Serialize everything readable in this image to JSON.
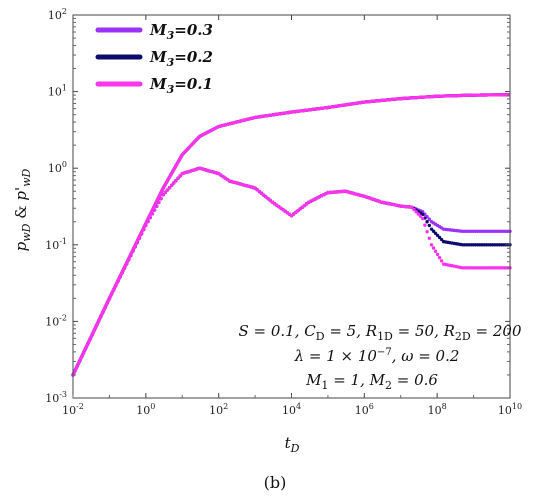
{
  "chart_data": {
    "type": "line",
    "xscale": "log",
    "yscale": "log",
    "xlim": [
      0.01,
      10000000000
    ],
    "ylim": [
      0.001,
      100
    ],
    "xticks": [
      {
        "base": "10",
        "exp": "-2"
      },
      {
        "base": "10",
        "exp": "0"
      },
      {
        "base": "10",
        "exp": "2"
      },
      {
        "base": "10",
        "exp": "4"
      },
      {
        "base": "10",
        "exp": "6"
      },
      {
        "base": "10",
        "exp": "8"
      },
      {
        "base": "10",
        "exp": "10"
      }
    ],
    "yticks": [
      {
        "base": "10",
        "exp": "-3"
      },
      {
        "base": "10",
        "exp": "-2"
      },
      {
        "base": "10",
        "exp": "-1"
      },
      {
        "base": "10",
        "exp": "0"
      },
      {
        "base": "10",
        "exp": "1"
      },
      {
        "base": "10",
        "exp": "2"
      }
    ],
    "xlabel": {
      "main": "t",
      "sub": "D"
    },
    "ylabel": {
      "p": "p",
      "sub1": "wD",
      "amp": " & ",
      "pprime": "p'",
      "sub2": "wD"
    },
    "legend_placement": "top-left",
    "grid": false,
    "pressure_curve": [
      {
        "x": 0.01,
        "y": 0.002
      },
      {
        "x": 0.1,
        "y": 0.02
      },
      {
        "x": 1,
        "y": 0.19
      },
      {
        "x": 3,
        "y": 0.55
      },
      {
        "x": 10,
        "y": 1.5
      },
      {
        "x": 30,
        "y": 2.6
      },
      {
        "x": 100,
        "y": 3.5
      },
      {
        "x": 1000,
        "y": 4.6
      },
      {
        "x": 10000,
        "y": 5.4
      },
      {
        "x": 100000,
        "y": 6.2
      },
      {
        "x": 1000000,
        "y": 7.3
      },
      {
        "x": 10000000,
        "y": 8.1
      },
      {
        "x": 100000000,
        "y": 8.7
      },
      {
        "x": 1000000000,
        "y": 9.0
      },
      {
        "x": 10000000000,
        "y": 9.1
      }
    ],
    "derivative_common": [
      {
        "x": 0.01,
        "y": 0.002
      },
      {
        "x": 0.1,
        "y": 0.02
      },
      {
        "x": 1,
        "y": 0.18
      },
      {
        "x": 3,
        "y": 0.45
      },
      {
        "x": 10,
        "y": 0.85
      },
      {
        "x": 30,
        "y": 1.0
      },
      {
        "x": 100,
        "y": 0.85
      },
      {
        "x": 200,
        "y": 0.68
      },
      {
        "x": 1000,
        "y": 0.55
      },
      {
        "x": 3000,
        "y": 0.36
      },
      {
        "x": 10000,
        "y": 0.24
      },
      {
        "x": 30000,
        "y": 0.36
      },
      {
        "x": 100000,
        "y": 0.48
      },
      {
        "x": 300000,
        "y": 0.5
      },
      {
        "x": 1000000,
        "y": 0.43
      },
      {
        "x": 3000000,
        "y": 0.36
      },
      {
        "x": 10000000,
        "y": 0.32
      }
    ],
    "series": [
      {
        "name": "M3=0.3",
        "label": {
          "base": "M",
          "sub": "3",
          "val": "=0.3"
        },
        "color": "#9b30ff",
        "tail": [
          {
            "x": 20000000,
            "y": 0.31
          },
          {
            "x": 40000000,
            "y": 0.27
          },
          {
            "x": 70000000,
            "y": 0.2
          },
          {
            "x": 150000000,
            "y": 0.16
          },
          {
            "x": 500000000,
            "y": 0.15
          },
          {
            "x": 10000000000,
            "y": 0.15
          }
        ]
      },
      {
        "name": "M3=0.2",
        "label": {
          "base": "M",
          "sub": "3",
          "val": "=0.2"
        },
        "color": "#0d0b6e",
        "tail": [
          {
            "x": 20000000,
            "y": 0.31
          },
          {
            "x": 40000000,
            "y": 0.25
          },
          {
            "x": 70000000,
            "y": 0.16
          },
          {
            "x": 150000000,
            "y": 0.11
          },
          {
            "x": 500000000,
            "y": 0.1
          },
          {
            "x": 10000000000,
            "y": 0.1
          }
        ]
      },
      {
        "name": "M3=0.1",
        "label": {
          "base": "M",
          "sub": "3",
          "val": "=0.1"
        },
        "color": "#ff33ee",
        "tail": [
          {
            "x": 20000000,
            "y": 0.31
          },
          {
            "x": 40000000,
            "y": 0.22
          },
          {
            "x": 70000000,
            "y": 0.1
          },
          {
            "x": 150000000,
            "y": 0.056
          },
          {
            "x": 500000000,
            "y": 0.05
          },
          {
            "x": 10000000000,
            "y": 0.05
          }
        ]
      }
    ],
    "annotations": [
      "S = 0.1, C_D = 5, R_1D = 50, R_2D = 200",
      "λ = 1 × 10^-7,  ω = 0.2",
      "M_1 = 1, M_2 = 0.6"
    ],
    "caption": "(b)"
  },
  "params": {
    "line1": [
      {
        "t": "S"
      },
      {
        "t": " = 0.1, "
      },
      {
        "t": "C"
      },
      {
        "t": "D",
        "sub": true
      },
      {
        "t": " = 5, "
      },
      {
        "t": "R"
      },
      {
        "t": "1D",
        "sub": true
      },
      {
        "t": " = 50, "
      },
      {
        "t": "R"
      },
      {
        "t": "2D",
        "sub": true
      },
      {
        "t": " = 200"
      }
    ],
    "line2": [
      {
        "t": "λ = 1 × 10"
      },
      {
        "t": "−7",
        "sup": true
      },
      {
        "t": ",   ω = 0.2"
      }
    ],
    "line3": [
      {
        "t": "M"
      },
      {
        "t": "1",
        "sub": true
      },
      {
        "t": " = 1, "
      },
      {
        "t": "M"
      },
      {
        "t": "2",
        "sub": true
      },
      {
        "t": " = 0.6"
      }
    ]
  }
}
